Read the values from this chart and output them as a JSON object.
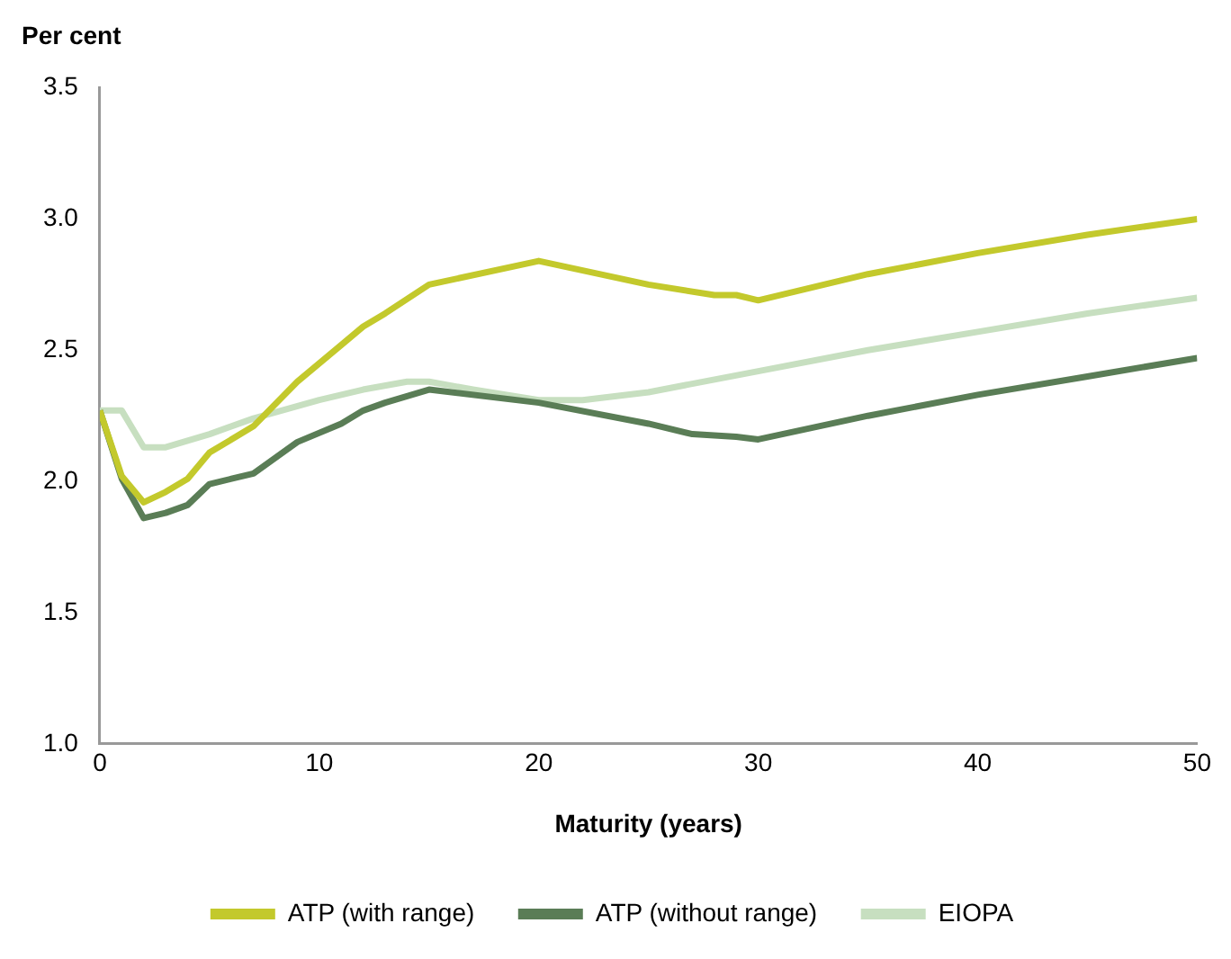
{
  "chart_data": {
    "type": "line",
    "title": "Per cent",
    "xlabel": "Maturity (years)",
    "xlim": [
      0,
      50
    ],
    "xticks": [
      0,
      10,
      20,
      30,
      40,
      50
    ],
    "ylim": [
      1.0,
      3.5
    ],
    "yticks": [
      {
        "value": 1.0,
        "label": "1.0"
      },
      {
        "value": 1.5,
        "label": "1.5"
      },
      {
        "value": 2.0,
        "label": "2.0"
      },
      {
        "value": 2.5,
        "label": "2.5"
      },
      {
        "value": 3.0,
        "label": "3.0"
      },
      {
        "value": 3.5,
        "label": "3.5"
      }
    ],
    "grid": false,
    "legend": "bottom",
    "marker": "none",
    "line_style": "solid",
    "series": [
      {
        "name": "ATP (with range)",
        "color": "#c3c92c",
        "x": [
          0,
          1,
          2,
          3,
          4,
          5,
          7,
          9,
          11,
          12,
          13,
          15,
          20,
          25,
          28,
          29,
          30,
          35,
          40,
          45,
          50
        ],
        "values": [
          2.27,
          2.02,
          1.92,
          1.96,
          2.01,
          2.11,
          2.21,
          2.38,
          2.52,
          2.59,
          2.64,
          2.75,
          2.84,
          2.75,
          2.71,
          2.71,
          2.69,
          2.79,
          2.87,
          2.94,
          3.0
        ]
      },
      {
        "name": "ATP (without range)",
        "color": "#5a7d56",
        "x": [
          0,
          1,
          2,
          3,
          4,
          5,
          6,
          7,
          9,
          11,
          12,
          13,
          15,
          20,
          25,
          27,
          29,
          30,
          35,
          40,
          45,
          50
        ],
        "values": [
          2.27,
          2.01,
          1.86,
          1.88,
          1.91,
          1.99,
          2.01,
          2.03,
          2.15,
          2.22,
          2.27,
          2.3,
          2.35,
          2.3,
          2.22,
          2.18,
          2.17,
          2.16,
          2.25,
          2.33,
          2.4,
          2.47
        ]
      },
      {
        "name": "EIOPA",
        "color": "#c7dfc0",
        "x": [
          0,
          1,
          2,
          3,
          5,
          7,
          10,
          12,
          14,
          15,
          17,
          20,
          22,
          25,
          30,
          35,
          40,
          45,
          50
        ],
        "values": [
          2.27,
          2.27,
          2.13,
          2.13,
          2.18,
          2.24,
          2.31,
          2.35,
          2.38,
          2.38,
          2.35,
          2.31,
          2.31,
          2.34,
          2.42,
          2.5,
          2.57,
          2.64,
          2.7
        ]
      }
    ]
  }
}
